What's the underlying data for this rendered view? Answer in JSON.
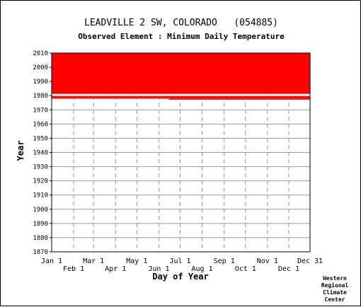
{
  "chart_data": {
    "type": "heatmap",
    "title": "LEADVILLE 2 SW, COLORADO   (054885)",
    "subtitle": "Observed Element : Minimum Daily Temperature",
    "xlabel": "Day of Year",
    "ylabel": "Year",
    "xlim": [
      1,
      365
    ],
    "ylim": [
      1870,
      2010
    ],
    "y_ticks": [
      1870,
      1880,
      1890,
      1900,
      1910,
      1920,
      1930,
      1940,
      1950,
      1960,
      1970,
      1980,
      1990,
      2000,
      2010
    ],
    "x_ticks_upper": [
      {
        "label": "Jan 1",
        "day": 1
      },
      {
        "label": "Mar 1",
        "day": 60
      },
      {
        "label": "May 1",
        "day": 121
      },
      {
        "label": "Jul 1",
        "day": 182
      },
      {
        "label": "Sep 1",
        "day": 244
      },
      {
        "label": "Nov 1",
        "day": 305
      },
      {
        "label": "Dec 31",
        "day": 365
      }
    ],
    "x_ticks_lower": [
      {
        "label": "Feb 1",
        "day": 32
      },
      {
        "label": "Apr 1",
        "day": 91
      },
      {
        "label": "Jun 1",
        "day": 152
      },
      {
        "label": "Aug 1",
        "day": 213
      },
      {
        "label": "Oct 1",
        "day": 274
      },
      {
        "label": "Dec 1",
        "day": 335
      }
    ],
    "series": [
      {
        "color": "#ff0000",
        "segments": [
          {
            "start_year": 1981.2,
            "end_year": 2010,
            "start_day": 1,
            "end_day": 365
          },
          {
            "start_year": 1978.8,
            "end_year": 1979.8,
            "start_day": 1,
            "end_day": 365
          },
          {
            "start_year": 1977.9,
            "end_year": 1978.8,
            "start_day": 1,
            "end_day": 365
          },
          {
            "start_year": 1977.2,
            "end_year": 1977.9,
            "start_day": 166,
            "end_day": 365
          }
        ],
        "gaps": [
          {
            "start_year": 1979.8,
            "end_year": 1981.2,
            "start_day": 1,
            "end_day": 365
          }
        ]
      }
    ],
    "grid": true
  },
  "credit": [
    "Western",
    "Regional",
    "Climate",
    "Center"
  ]
}
